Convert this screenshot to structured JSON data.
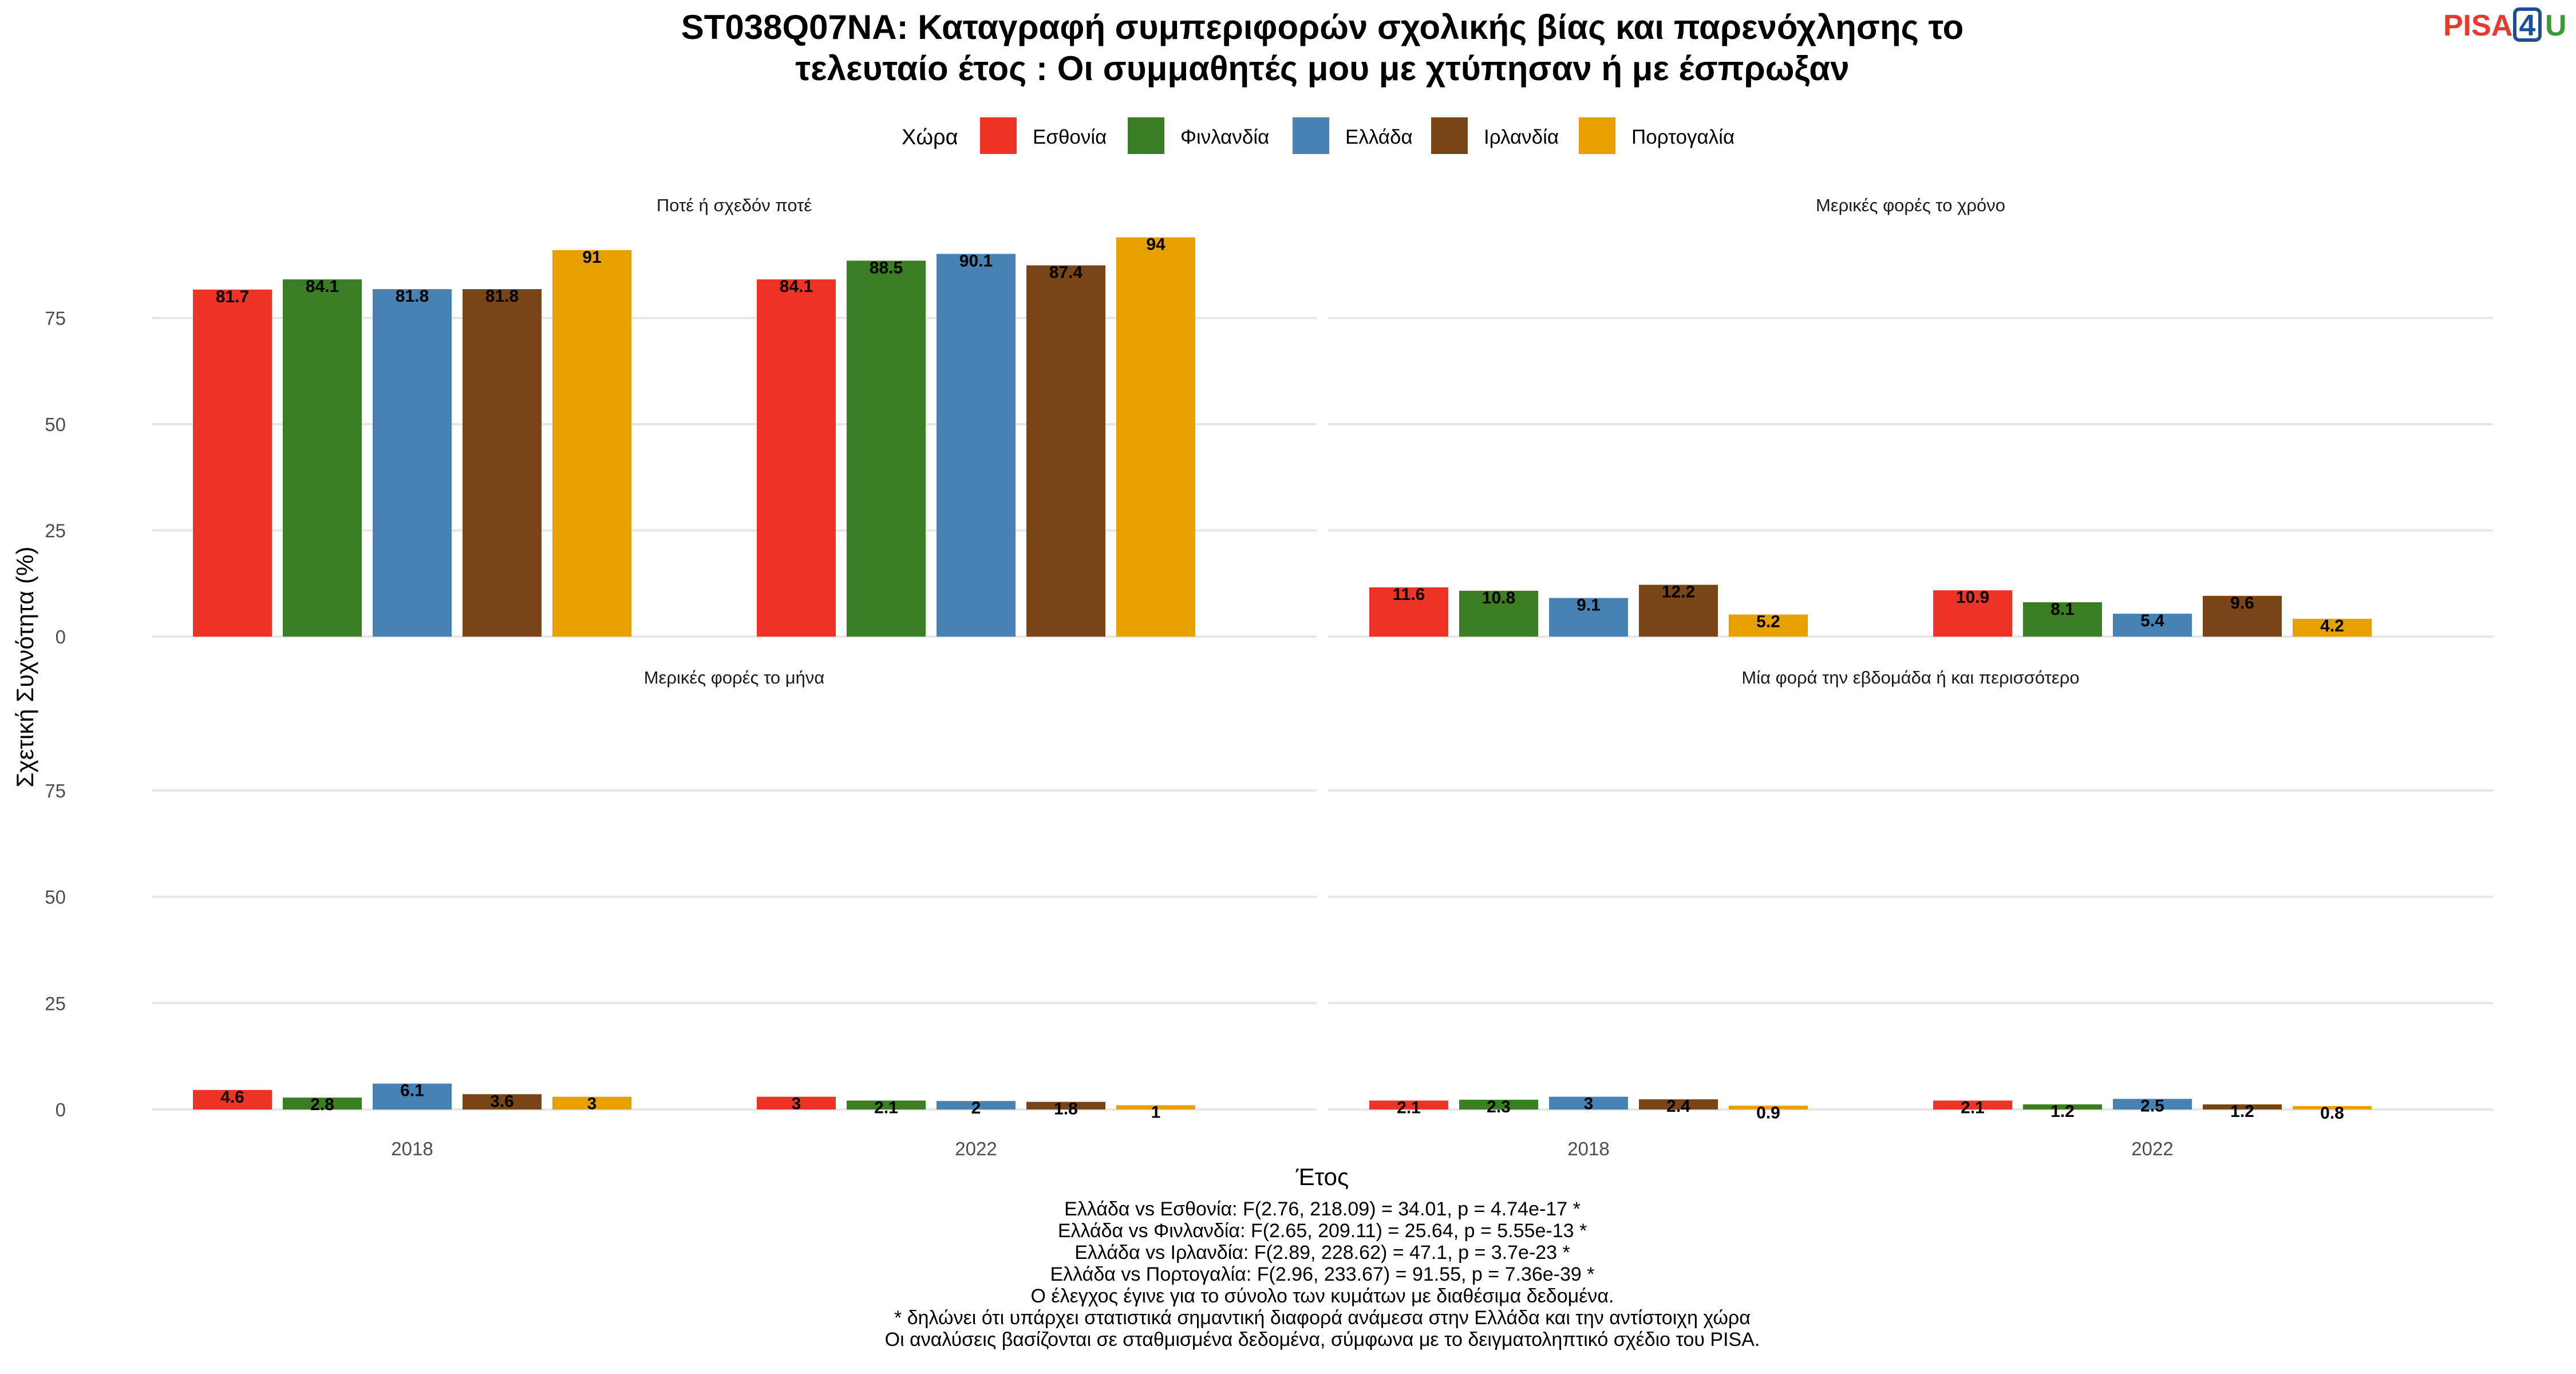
{
  "title_lines": [
    "ST038Q07NA: Καταγραφή συμπεριφορών σχολικής βίας και παρενόχλησης το",
    "τελευταίο έτος : Οι συμμαθητές μου με χτύπησαν ή με έσπρωξαν"
  ],
  "logo": {
    "part1": "PISA",
    "part2": "4",
    "part3": "U",
    "colors": {
      "part1": "#e8392f",
      "part2": "#1f4e99",
      "part3": "#3a9b35"
    }
  },
  "legend": {
    "title": "Χώρα",
    "items": [
      {
        "label": "Εσθονία",
        "color": "#ee3426"
      },
      {
        "label": "Φινλανδία",
        "color": "#3a7d23"
      },
      {
        "label": "Ελλάδα",
        "color": "#4682b4"
      },
      {
        "label": "Ιρλανδία",
        "color": "#7a4516"
      },
      {
        "label": "Πορτογαλία",
        "color": "#e8a000"
      }
    ]
  },
  "chart_data": {
    "type": "bar",
    "facets": [
      "Ποτέ ή σχεδόν ποτέ",
      "Μερικές φορές το χρόνο",
      "Μερικές φορές το μήνα",
      "Μία φορά την εβδομάδα ή και περισσότερο"
    ],
    "categories": [
      "2018",
      "2022"
    ],
    "series": [
      {
        "name": "Εσθονία",
        "values": [
          [
            81.7,
            84.1
          ],
          [
            11.6,
            10.9
          ],
          [
            4.6,
            3
          ],
          [
            2.1,
            2.1
          ]
        ]
      },
      {
        "name": "Φινλανδία",
        "values": [
          [
            84.1,
            88.5
          ],
          [
            10.8,
            8.1
          ],
          [
            2.8,
            2.1
          ],
          [
            2.3,
            1.2
          ]
        ]
      },
      {
        "name": "Ελλάδα",
        "values": [
          [
            81.8,
            90.1
          ],
          [
            9.1,
            5.4
          ],
          [
            6.1,
            2
          ],
          [
            3,
            2.5
          ]
        ]
      },
      {
        "name": "Ιρλανδία",
        "values": [
          [
            81.8,
            87.4
          ],
          [
            12.2,
            9.6
          ],
          [
            3.6,
            1.8
          ],
          [
            2.4,
            1.2
          ]
        ]
      },
      {
        "name": "Πορτογαλία",
        "values": [
          [
            91,
            94
          ],
          [
            5.2,
            4.2
          ],
          [
            3,
            1
          ],
          [
            0.9,
            0.8
          ]
        ]
      }
    ],
    "xlabel": "Έτος",
    "ylabel": "Σχετική Συχνότητα (%)",
    "yticks": [
      0,
      25,
      50,
      75
    ],
    "ylim": [
      0,
      100
    ],
    "grid": true,
    "legend_position": "top"
  },
  "footnotes": [
    "Ελλάδα vs Εσθονία: F(2.76, 218.09) = 34.01, p = 4.74e-17 *",
    "Ελλάδα vs Φινλανδία: F(2.65, 209.11) = 25.64, p = 5.55e-13 *",
    "Ελλάδα vs Ιρλανδία: F(2.89, 228.62) = 47.1, p = 3.7e-23 *",
    "Ελλάδα vs Πορτογαλία: F(2.96, 233.67) = 91.55, p = 7.36e-39 *",
    "Ο έλεγχος έγινε για το σύνολο των κυμάτων με διαθέσιμα δεδομένα.",
    "* δηλώνει ότι υπάρχει στατιστικά σημαντική διαφορά ανάμεσα στην Ελλάδα και την αντίστοιχη χώρα",
    "Οι αναλύσεις βασίζονται σε σταθμισμένα δεδομένα, σύμφωνα με το δειγματοληπτικό σχέδιο του PISA."
  ]
}
